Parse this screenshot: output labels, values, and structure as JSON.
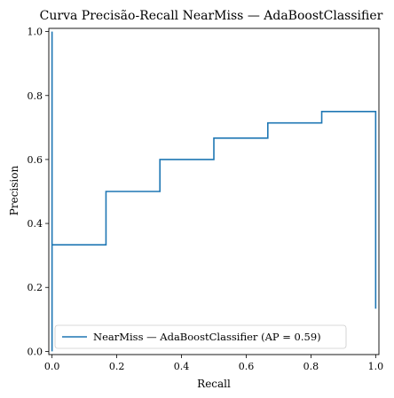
{
  "chart_data": {
    "type": "line",
    "title": "Curva Precisão-Recall NearMiss — AdaBoostClassifier",
    "xlabel": "Recall",
    "ylabel": "Precision",
    "xlim": [
      -0.01,
      1.01
    ],
    "ylim": [
      -0.01,
      1.01
    ],
    "xticks": [
      "0.0",
      "0.2",
      "0.4",
      "0.6",
      "0.8",
      "1.0"
    ],
    "yticks": [
      "0.0",
      "0.2",
      "0.4",
      "0.6",
      "0.8",
      "1.0"
    ],
    "grid": false,
    "legend_position": "lower-left",
    "series": [
      {
        "name": "NearMiss — AdaBoostClassifier (AP = 0.59)",
        "color": "#1f77b4",
        "drawstyle": "steps-post",
        "x": [
          1.0,
          1.0,
          0.8333,
          0.8333,
          0.6667,
          0.6667,
          0.5,
          0.5,
          0.3333,
          0.3333,
          0.1667,
          0.1667,
          0.0,
          0.0,
          0.0
        ],
        "y": [
          0.1333,
          0.75,
          0.75,
          0.7143,
          0.7143,
          0.6667,
          0.6667,
          0.6,
          0.6,
          0.5,
          0.5,
          0.3333,
          0.3333,
          1.0,
          0.0
        ]
      }
    ]
  }
}
